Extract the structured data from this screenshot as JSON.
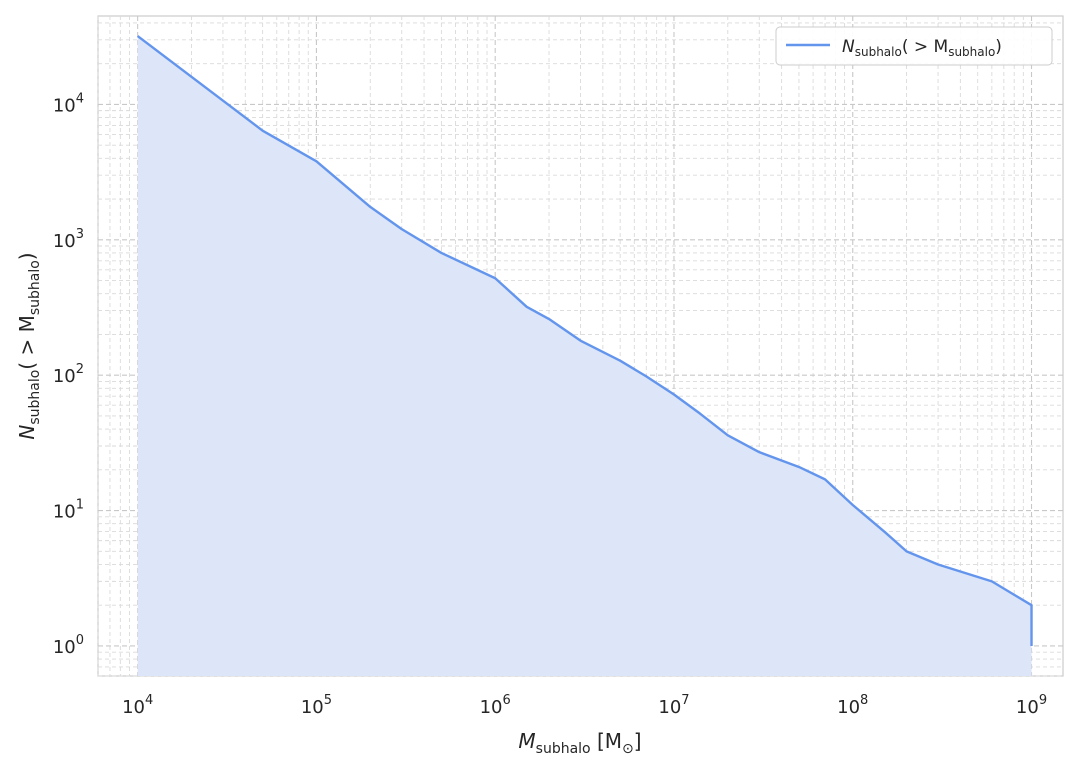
{
  "chart_data": {
    "type": "line",
    "x_scale": "log",
    "y_scale": "log",
    "xlim": [
      6000,
      1500000000
    ],
    "ylim": [
      0.6,
      45000
    ],
    "grid": true,
    "fill_under": true,
    "x_ticks": [
      {
        "base": "10",
        "exp": "4",
        "value": 10000
      },
      {
        "base": "10",
        "exp": "5",
        "value": 100000
      },
      {
        "base": "10",
        "exp": "6",
        "value": 1000000
      },
      {
        "base": "10",
        "exp": "7",
        "value": 10000000
      },
      {
        "base": "10",
        "exp": "8",
        "value": 100000000
      },
      {
        "base": "10",
        "exp": "9",
        "value": 1000000000
      }
    ],
    "y_ticks": [
      {
        "base": "10",
        "exp": "0",
        "value": 1
      },
      {
        "base": "10",
        "exp": "1",
        "value": 10
      },
      {
        "base": "10",
        "exp": "2",
        "value": 100
      },
      {
        "base": "10",
        "exp": "3",
        "value": 1000
      },
      {
        "base": "10",
        "exp": "4",
        "value": 10000
      }
    ],
    "xlabel": {
      "main": "M",
      "sub": "subhalo",
      "unit": " [M",
      "unit_sub": "⊙",
      "close": "]"
    },
    "ylabel": {
      "main": "N",
      "sub": "subhalo",
      "paren": "( > M",
      "sub2": "subhalo",
      "close": ")"
    },
    "legend": {
      "position": "top-right",
      "main": "N",
      "sub": "subhalo",
      "paren": "( > M",
      "sub2": "subhalo",
      "close": ")"
    },
    "series": [
      {
        "color": "#6495ED",
        "fill_color": "#DCE6F8",
        "points": [
          [
            10000,
            32000
          ],
          [
            20000,
            16000
          ],
          [
            50000,
            6400
          ],
          [
            100000,
            3800
          ],
          [
            200000,
            1750
          ],
          [
            300000,
            1200
          ],
          [
            500000,
            800
          ],
          [
            1000000,
            520
          ],
          [
            1500000,
            320
          ],
          [
            2000000,
            260
          ],
          [
            3000000,
            180
          ],
          [
            5000000,
            128
          ],
          [
            7000000,
            98
          ],
          [
            10000000,
            72
          ],
          [
            14000000,
            52
          ],
          [
            20000000,
            36
          ],
          [
            30000000,
            27
          ],
          [
            50000000,
            21
          ],
          [
            70000000,
            17
          ],
          [
            100000000,
            11
          ],
          [
            150000000,
            7
          ],
          [
            200000000,
            5
          ],
          [
            300000000,
            4
          ],
          [
            600000000,
            3
          ],
          [
            1000000000,
            2
          ],
          [
            1000000000,
            1
          ]
        ]
      }
    ]
  }
}
